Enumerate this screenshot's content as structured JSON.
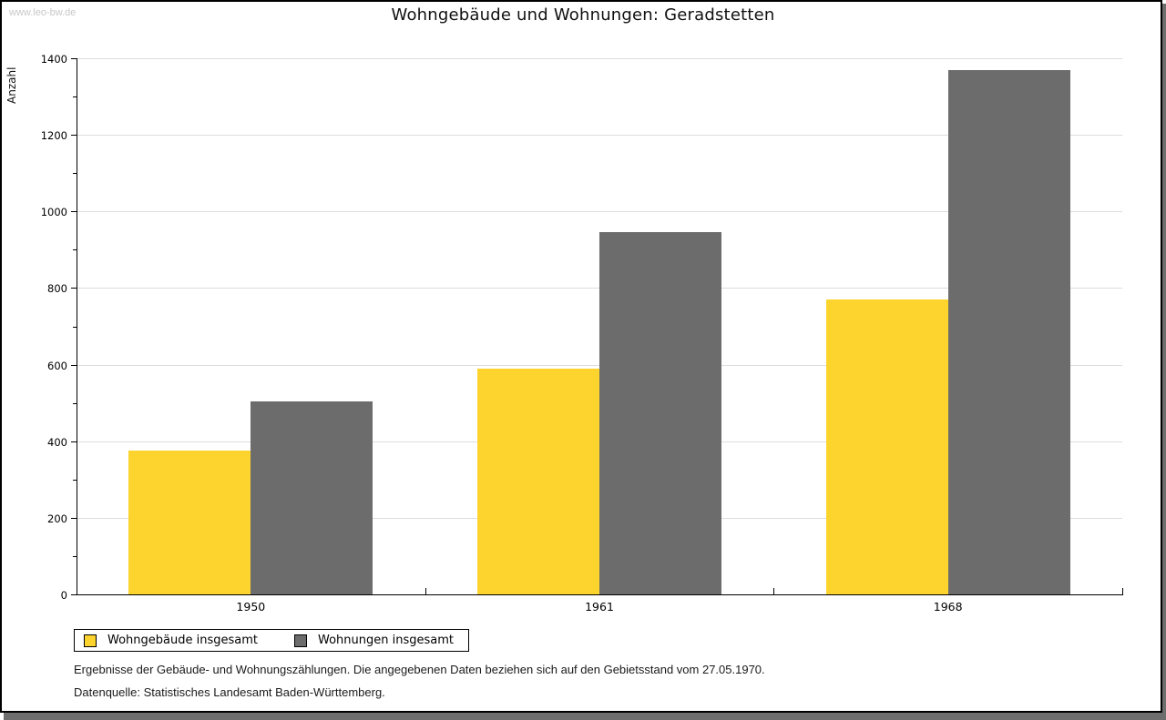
{
  "watermark": "www.leo-bw.de",
  "title": "Wohngebäude und Wohnungen: Geradstetten",
  "chart_data": {
    "type": "bar",
    "title": "Wohngebäude und Wohnungen: Geradstetten",
    "categories": [
      "1950",
      "1961",
      "1968"
    ],
    "series": [
      {
        "name": "Wohngebäude insgesamt",
        "color": "#fcd42d",
        "values": [
          375,
          590,
          770
        ]
      },
      {
        "name": "Wohnungen insgesamt",
        "color": "#6c6c6c",
        "values": [
          505,
          945,
          1370
        ]
      }
    ],
    "xlabel": "",
    "ylabel": "Anzahl",
    "ylim": [
      0,
      1400
    ],
    "ytick_step": 200,
    "minor_tick_step": 100,
    "grid": true,
    "legend_position": "bottom-left"
  },
  "footer": {
    "line1": "Ergebnisse der Gebäude- und Wohnungszählungen. Die angegebenen Daten beziehen sich auf den Gebietsstand vom 27.05.1970.",
    "line2": "Datenquelle: Statistisches Landesamt Baden-Württemberg."
  },
  "colors": {
    "series1": "#fcd42d",
    "series2": "#6c6c6c",
    "gridline": "#dddddd",
    "axis": "#000000",
    "watermark_text": "#c8c8c8",
    "frame_border": "#000000",
    "frame_shadow": "#6e6e6e"
  }
}
